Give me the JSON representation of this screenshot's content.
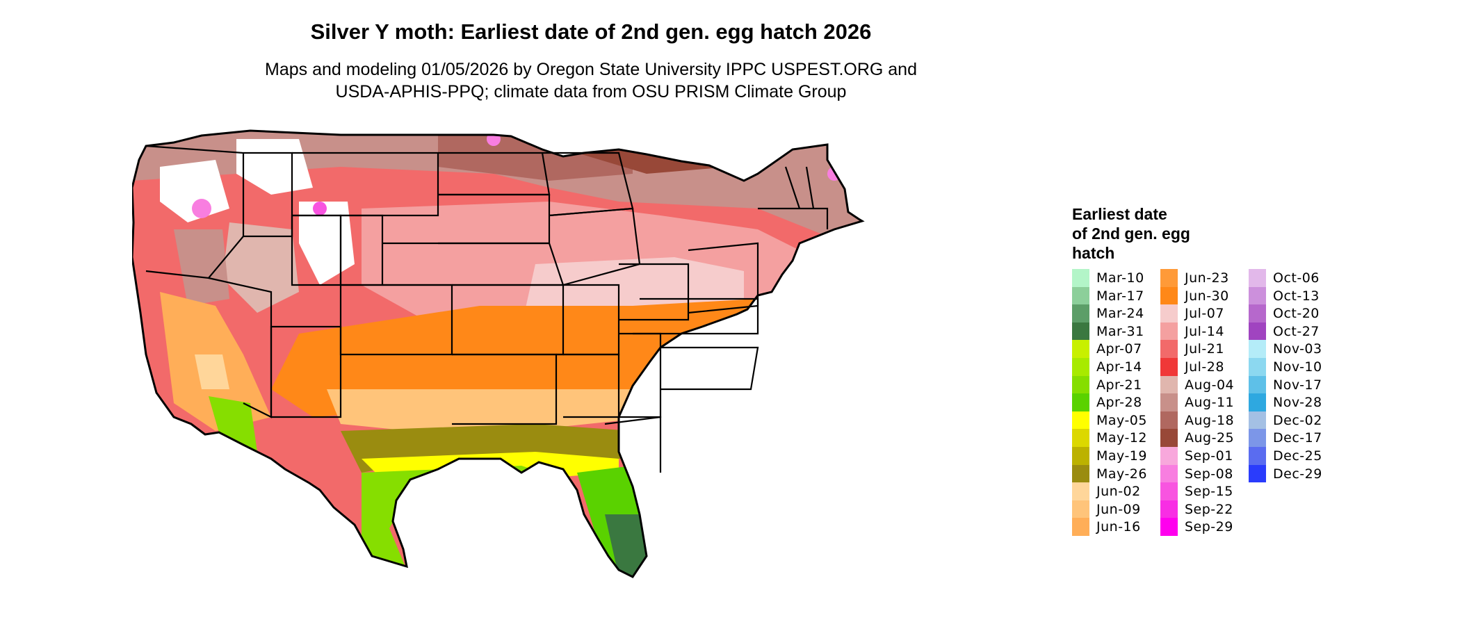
{
  "title": "Silver Y moth: Earliest date of 2nd gen. egg hatch 2026",
  "subtitle_line1": "Maps and modeling 01/05/2026 by Oregon State University IPPC USPEST.ORG and",
  "subtitle_line2": "USDA-APHIS-PPQ; climate data from OSU PRISM Climate Group",
  "legend": {
    "title_line1": "Earliest date",
    "title_line2": "of 2nd gen. egg",
    "title_line3": "hatch",
    "columns": [
      [
        {
          "label": "Mar-10",
          "color": "#b3f5c8"
        },
        {
          "label": "Mar-17",
          "color": "#8ccf9a"
        },
        {
          "label": "Mar-24",
          "color": "#5c9e68"
        },
        {
          "label": "Mar-31",
          "color": "#3a7840"
        },
        {
          "label": "Apr-07",
          "color": "#c8f000"
        },
        {
          "label": "Apr-14",
          "color": "#a8ea00"
        },
        {
          "label": "Apr-21",
          "color": "#86de00"
        },
        {
          "label": "Apr-28",
          "color": "#5ad200"
        },
        {
          "label": "May-05",
          "color": "#ffff00"
        },
        {
          "label": "May-12",
          "color": "#dcd800"
        },
        {
          "label": "May-19",
          "color": "#bcb200"
        },
        {
          "label": "May-26",
          "color": "#9a8c10"
        },
        {
          "label": "Jun-02",
          "color": "#ffd69a"
        },
        {
          "label": "Jun-09",
          "color": "#ffc47a"
        },
        {
          "label": "Jun-16",
          "color": "#ffae58"
        }
      ],
      [
        {
          "label": "Jun-23",
          "color": "#ff9a38"
        },
        {
          "label": "Jun-30",
          "color": "#ff8818"
        },
        {
          "label": "Jul-07",
          "color": "#f6cccc"
        },
        {
          "label": "Jul-14",
          "color": "#f4a0a0"
        },
        {
          "label": "Jul-21",
          "color": "#f26a6a"
        },
        {
          "label": "Jul-28",
          "color": "#f03838"
        },
        {
          "label": "Aug-04",
          "color": "#e0b6ae"
        },
        {
          "label": "Aug-11",
          "color": "#c8908a"
        },
        {
          "label": "Aug-18",
          "color": "#b06860"
        },
        {
          "label": "Aug-25",
          "color": "#984838"
        },
        {
          "label": "Sep-01",
          "color": "#f8a8dc"
        },
        {
          "label": "Sep-08",
          "color": "#f87ee0"
        },
        {
          "label": "Sep-15",
          "color": "#f854e0"
        },
        {
          "label": "Sep-22",
          "color": "#f82ee4"
        },
        {
          "label": "Sep-29",
          "color": "#ff00ee"
        }
      ],
      [
        {
          "label": "Oct-06",
          "color": "#e2b8ea"
        },
        {
          "label": "Oct-13",
          "color": "#cc90dc"
        },
        {
          "label": "Oct-20",
          "color": "#b668cc"
        },
        {
          "label": "Oct-27",
          "color": "#a044c0"
        },
        {
          "label": "Nov-03",
          "color": "#b4ecf8"
        },
        {
          "label": "Nov-10",
          "color": "#8cd8f0"
        },
        {
          "label": "Nov-17",
          "color": "#5ec0e8"
        },
        {
          "label": "Nov-28",
          "color": "#2ea8e0"
        },
        {
          "label": "Dec-02",
          "color": "#a4c0e4"
        },
        {
          "label": "Dec-17",
          "color": "#7c96e8"
        },
        {
          "label": "Dec-25",
          "color": "#5a6cf0"
        },
        {
          "label": "Dec-29",
          "color": "#2a3cfc"
        }
      ]
    ]
  }
}
